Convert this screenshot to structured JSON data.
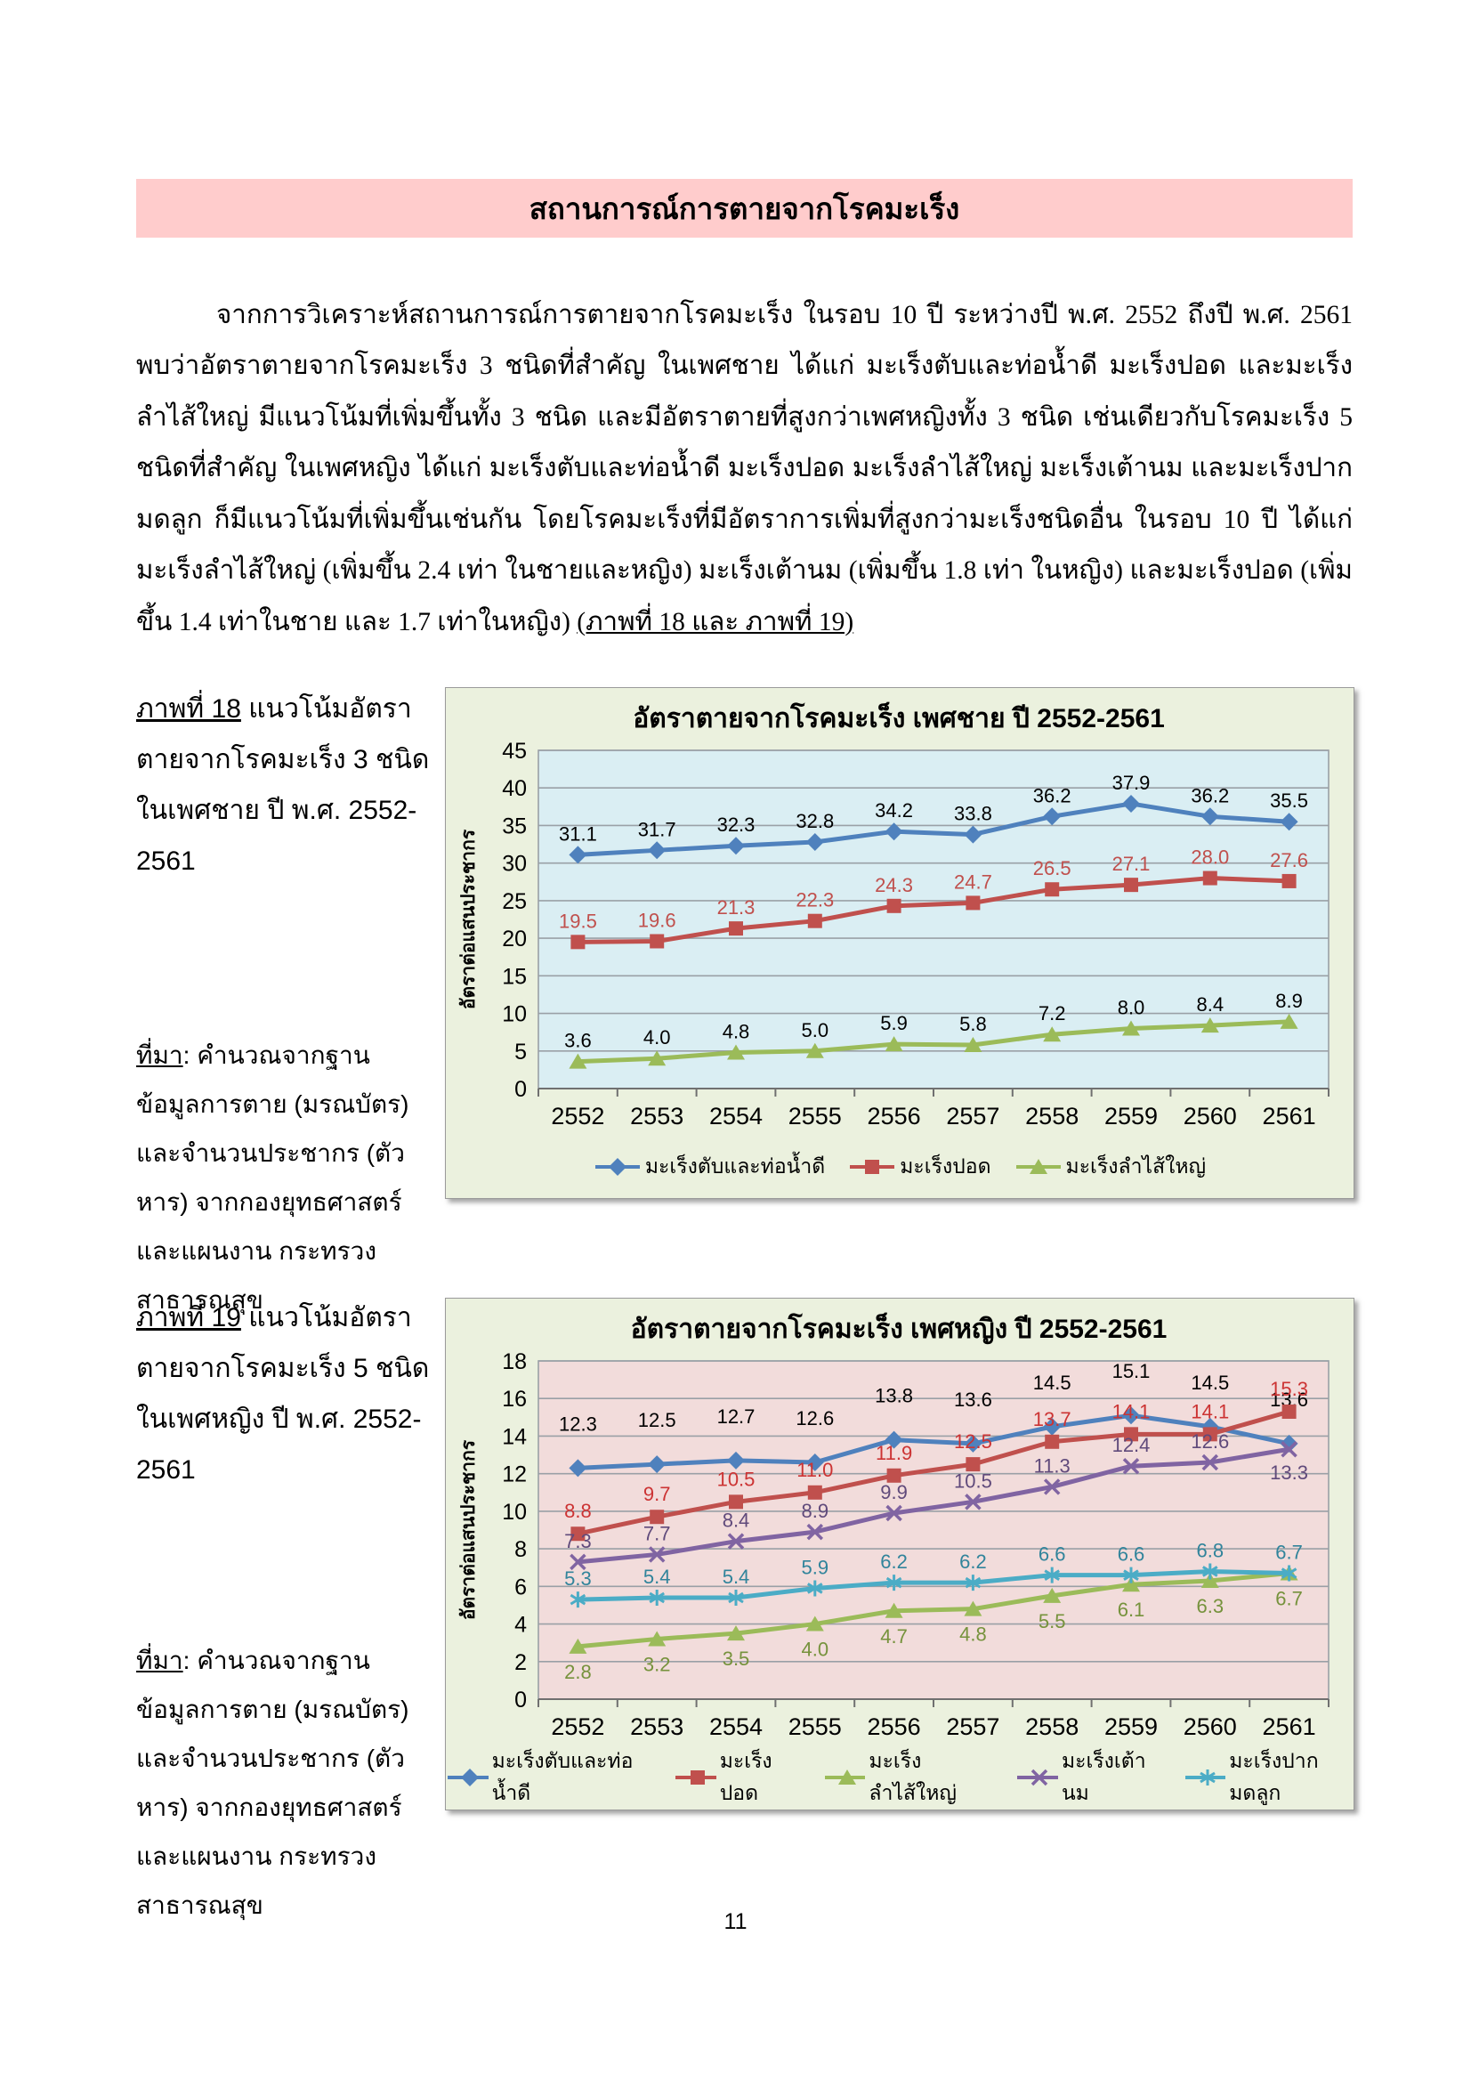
{
  "banner": {
    "title": "สถานการณ์การตายจากโรคมะเร็ง",
    "bg": "#FFCCCC"
  },
  "paragraph": {
    "body": "จากการวิเคราะห์สถานการณ์การตายจากโรคมะเร็ง ในรอบ 10 ปี ระหว่างปี พ.ศ. 2552 ถึงปี พ.ศ. 2561 พบว่าอัตราตายจากโรคมะเร็ง 3 ชนิดที่สำคัญ ในเพศชาย ได้แก่ มะเร็งตับและท่อน้ำดี มะเร็งปอด และมะเร็งลำไส้ใหญ่ มีแนวโน้มที่เพิ่มขึ้นทั้ง 3 ชนิด และมีอัตราตายที่สูงกว่าเพศหญิงทั้ง 3 ชนิด เช่นเดียวกับโรคมะเร็ง 5 ชนิดที่สำคัญ ในเพศหญิง ได้แก่ มะเร็งตับและท่อน้ำดี มะเร็งปอด มะเร็งลำไส้ใหญ่ มะเร็งเต้านม และมะเร็งปากมดลูก ก็มีแนวโน้มที่เพิ่มขึ้นเช่นกัน โดยโรคมะเร็งที่มีอัตราการเพิ่มที่สูงกว่ามะเร็งชนิดอื่น ในรอบ 10 ปี ได้แก่ มะเร็งลำไส้ใหญ่ (เพิ่มขึ้น 2.4 เท่า ในชายและหญิง) มะเร็งเต้านม (เพิ่มขึ้น 1.8 เท่า ในหญิง) และมะเร็งปอด (เพิ่มขึ้น 1.4 เท่าในชาย และ 1.7 เท่าในหญิง) ",
    "tail_underlined": "(ภาพที่ 18 และ ภาพที่ 19)"
  },
  "figures": [
    {
      "caption_underline": "ภาพที่ 18",
      "caption_rest": " แนวโน้มอัตราตายจากโรคมะเร็ง 3 ชนิด ในเพศชาย ปี พ.ศ. 2552-2561",
      "source_underline": "ที่มา",
      "source_rest": ": คำนวณจากฐานข้อมูลการตาย (มรณบัตร) และจำนวนประชากร (ตัวหาร) จากกองยุทธศาสตร์และแผนงาน กระทรวงสาธารณสุข"
    },
    {
      "caption_underline": "ภาพที่ 19",
      "caption_rest": " แนวโน้มอัตราตายจากโรคมะเร็ง 5 ชนิด ในเพศหญิง ปี พ.ศ. 2552-2561",
      "source_underline": "ที่มา",
      "source_rest": ": คำนวณจากฐานข้อมูลการตาย (มรณบัตร) และจำนวนประชากร (ตัวหาร) จากกองยุทธศาสตร์และแผนงาน กระทรวงสาธารณสุข"
    }
  ],
  "chart_data": [
    {
      "type": "line",
      "title": "อัตราตายจากโรคมะเร็ง เพศชาย ปี 2552-2561",
      "ylabel": "อัตราต่อแสนประชากร",
      "xlabel": "",
      "categories": [
        "2552",
        "2553",
        "2554",
        "2555",
        "2556",
        "2557",
        "2558",
        "2559",
        "2560",
        "2561"
      ],
      "ylim": [
        0,
        45
      ],
      "ytick_step": 5,
      "grid": true,
      "legend_position": "bottom",
      "plot_bg": "#DAEEF3",
      "frame_bg": "#EBF1DE",
      "series": [
        {
          "name": "มะเร็งตับและท่อน้ำดี",
          "color": "#4F81BD",
          "marker": "diamond",
          "label_color": "#000000",
          "label_dy": -16,
          "values": [
            31.1,
            31.7,
            32.3,
            32.8,
            34.2,
            33.8,
            36.2,
            37.9,
            36.2,
            35.5
          ]
        },
        {
          "name": "มะเร็งปอด",
          "color": "#C0504D",
          "marker": "square",
          "label_color": "#C0504D",
          "label_dy": -16,
          "values": [
            19.5,
            19.6,
            21.3,
            22.3,
            24.3,
            24.7,
            26.5,
            27.1,
            28.0,
            27.6
          ]
        },
        {
          "name": "มะเร็งลำไส้ใหญ่",
          "color": "#9BBB59",
          "marker": "triangle",
          "label_color": "#000000",
          "label_dy": -16,
          "values": [
            3.6,
            4.0,
            4.8,
            5.0,
            5.9,
            5.8,
            7.2,
            8.0,
            8.4,
            8.9
          ]
        }
      ]
    },
    {
      "type": "line",
      "title": "อัตราตายจากโรคมะเร็ง เพศหญิง ปี 2552-2561",
      "ylabel": "อัตราต่อแสนประชากร",
      "xlabel": "",
      "categories": [
        "2552",
        "2553",
        "2554",
        "2555",
        "2556",
        "2557",
        "2558",
        "2559",
        "2560",
        "2561"
      ],
      "ylim": [
        0,
        18
      ],
      "ytick_step": 2,
      "grid": true,
      "legend_position": "bottom",
      "plot_bg": "#F2DCDB",
      "frame_bg": "#EBF1DE",
      "series": [
        {
          "name": "มะเร็งตับและท่อน้ำดี",
          "color": "#4F81BD",
          "marker": "diamond",
          "label_color": "#000000",
          "label_dy": -42,
          "values": [
            12.3,
            12.5,
            12.7,
            12.6,
            13.8,
            13.6,
            14.5,
            15.1,
            14.5,
            13.6
          ]
        },
        {
          "name": "มะเร็งปอด",
          "color": "#C0504D",
          "marker": "square",
          "label_color": "#CC3333",
          "label_dy": -18,
          "values": [
            8.8,
            9.7,
            10.5,
            11.0,
            11.9,
            12.5,
            13.7,
            14.1,
            14.1,
            15.3
          ]
        },
        {
          "name": "มะเร็งลำไส้ใหญ่",
          "color": "#9BBB59",
          "marker": "triangle",
          "label_color": "#76923C",
          "label_dy": 36,
          "values": [
            2.8,
            3.2,
            3.5,
            4.0,
            4.7,
            4.8,
            5.5,
            6.1,
            6.3,
            6.7
          ]
        },
        {
          "name": "มะเร็งเต้านม",
          "color": "#8064A2",
          "marker": "x",
          "label_color": "#604A7B",
          "label_dy": -16,
          "label_dy_over": {
            "9": 34
          },
          "values": [
            7.3,
            7.7,
            8.4,
            8.9,
            9.9,
            10.5,
            11.3,
            12.4,
            12.6,
            13.3
          ]
        },
        {
          "name": "มะเร็งปากมดลูก",
          "color": "#4BACC6",
          "marker": "asterisk",
          "label_color": "#31849B",
          "label_dy": -16,
          "values": [
            5.3,
            5.4,
            5.4,
            5.9,
            6.2,
            6.2,
            6.6,
            6.6,
            6.8,
            6.7
          ]
        }
      ]
    }
  ],
  "page": {
    "number": "11"
  }
}
